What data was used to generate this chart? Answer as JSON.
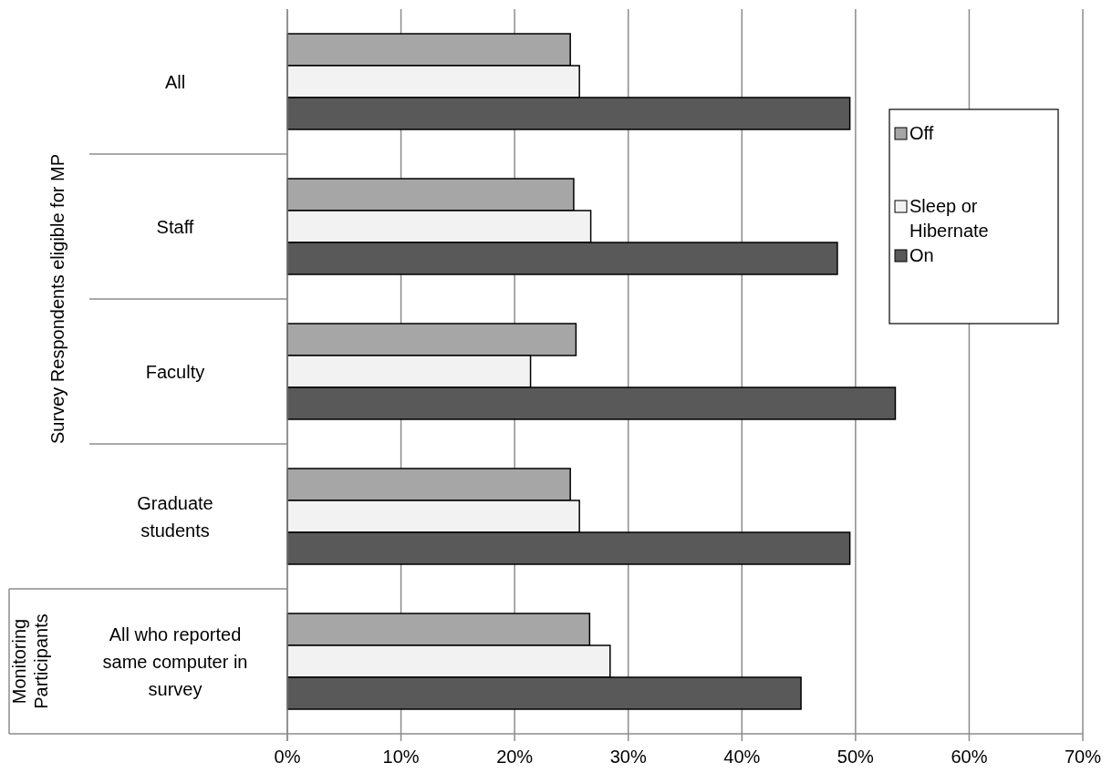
{
  "chart_data": {
    "type": "bar",
    "orientation": "horizontal",
    "categories": [
      "All",
      "Staff",
      "Faculty",
      "Graduate students",
      "All who reported same computer in survey"
    ],
    "series": [
      {
        "name": "Off",
        "color": "#a6a6a6",
        "values": [
          24.9,
          25.2,
          25.4,
          24.9,
          26.6
        ]
      },
      {
        "name": "Sleep or Hibernate",
        "color": "#f2f2f2",
        "values": [
          25.7,
          26.7,
          21.4,
          25.7,
          28.4
        ]
      },
      {
        "name": "On",
        "color": "#595959",
        "values": [
          49.5,
          48.4,
          53.5,
          49.5,
          45.2
        ]
      }
    ],
    "xlim": [
      0,
      70
    ],
    "xticks": [
      {
        "value": 0,
        "label": "0%"
      },
      {
        "value": 10,
        "label": "10%"
      },
      {
        "value": 20,
        "label": "20%"
      },
      {
        "value": 30,
        "label": "30%"
      },
      {
        "value": 40,
        "label": "40%"
      },
      {
        "value": 50,
        "label": "50%"
      },
      {
        "value": 60,
        "label": "60%"
      },
      {
        "value": 70,
        "label": "70%"
      }
    ],
    "grid": "x",
    "legend": "top right",
    "annotations": [
      "Survey Respondents eligible for MP",
      "Monitoring Participants"
    ]
  }
}
